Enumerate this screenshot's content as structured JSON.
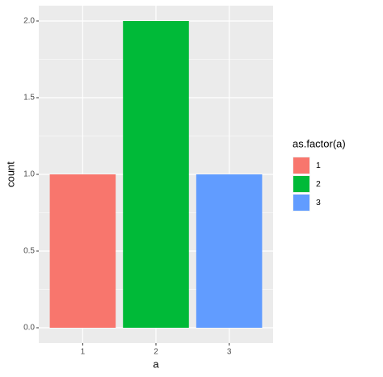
{
  "chart_data": {
    "type": "bar",
    "x_label": "a",
    "y_label": "count",
    "categories": [
      "1",
      "2",
      "3"
    ],
    "values": [
      1,
      2,
      1
    ],
    "colors": [
      "#F8766D",
      "#00BA38",
      "#619CFF"
    ],
    "legend_title": "as.factor(a)",
    "ylim": [
      -0.1,
      2.1
    ],
    "yticks": [
      {
        "value": 0,
        "label": "0.0"
      },
      {
        "value": 0.5,
        "label": "0.5"
      },
      {
        "value": 1,
        "label": "1.0"
      },
      {
        "value": 1.5,
        "label": "1.5"
      },
      {
        "value": 2,
        "label": "2.0"
      }
    ],
    "grid": true,
    "legend": "right"
  }
}
